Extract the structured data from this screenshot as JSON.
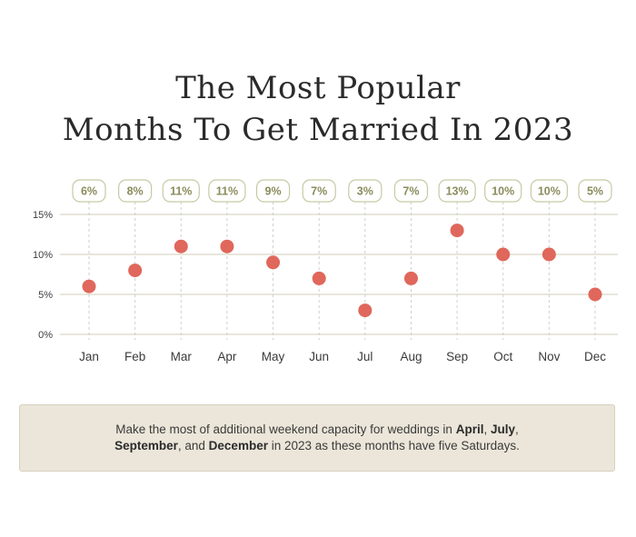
{
  "title": {
    "line1": "The Most Popular",
    "line2": "Months To Get Married In 2023"
  },
  "colors": {
    "dot": "#e0675b",
    "label_border": "#c7c9a4",
    "label_text": "#8a8c5c",
    "grid": "#d9d6c8",
    "note_bg": "#ebe6d9"
  },
  "chart_data": {
    "type": "scatter",
    "categories": [
      "Jan",
      "Feb",
      "Mar",
      "Apr",
      "May",
      "Jun",
      "Jul",
      "Aug",
      "Sep",
      "Oct",
      "Nov",
      "Dec"
    ],
    "values": [
      6,
      8,
      11,
      11,
      9,
      7,
      3,
      7,
      13,
      10,
      10,
      5
    ],
    "data_labels": [
      "6%",
      "8%",
      "11%",
      "11%",
      "9%",
      "7%",
      "3%",
      "7%",
      "13%",
      "10%",
      "10%",
      "5%"
    ],
    "y_ticks": [
      "0%",
      "5%",
      "10%",
      "15%"
    ],
    "y_tick_values": [
      0,
      5,
      10,
      15
    ],
    "ylim": [
      0,
      15
    ],
    "grid": true,
    "xlabel": "",
    "ylabel": ""
  },
  "note": {
    "p1": "Make the most of additional weekend capacity for weddings in ",
    "m1": "April",
    "s1": ", ",
    "m2": "July",
    "s2": ", ",
    "m3": "September",
    "s3": ", and ",
    "m4": "December",
    "p2": " in 2023 as these months have five Saturdays."
  }
}
